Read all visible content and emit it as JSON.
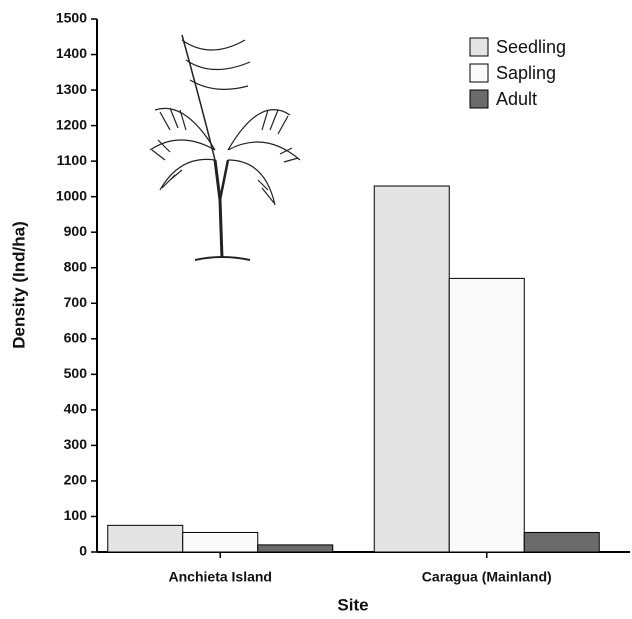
{
  "chart_data": {
    "type": "bar",
    "x_label": "Site",
    "y_label": "Density (Ind/ha)",
    "categories": [
      "Anchieta Island",
      "Caragua (Mainland)"
    ],
    "series": [
      {
        "name": "Seedling",
        "color": "#e4e4e4",
        "values": [
          75,
          1030
        ]
      },
      {
        "name": "Sapling",
        "color": "#fafafa",
        "values": [
          55,
          770
        ]
      },
      {
        "name": "Adult",
        "color": "#6b6b6b",
        "values": [
          20,
          55
        ]
      }
    ],
    "ylim": [
      0,
      1500
    ],
    "yticks": [
      0,
      100,
      200,
      300,
      400,
      500,
      600,
      700,
      800,
      900,
      1000,
      1100,
      1200,
      1300,
      1400,
      1500
    ],
    "grid": false,
    "legend": "upper right"
  }
}
